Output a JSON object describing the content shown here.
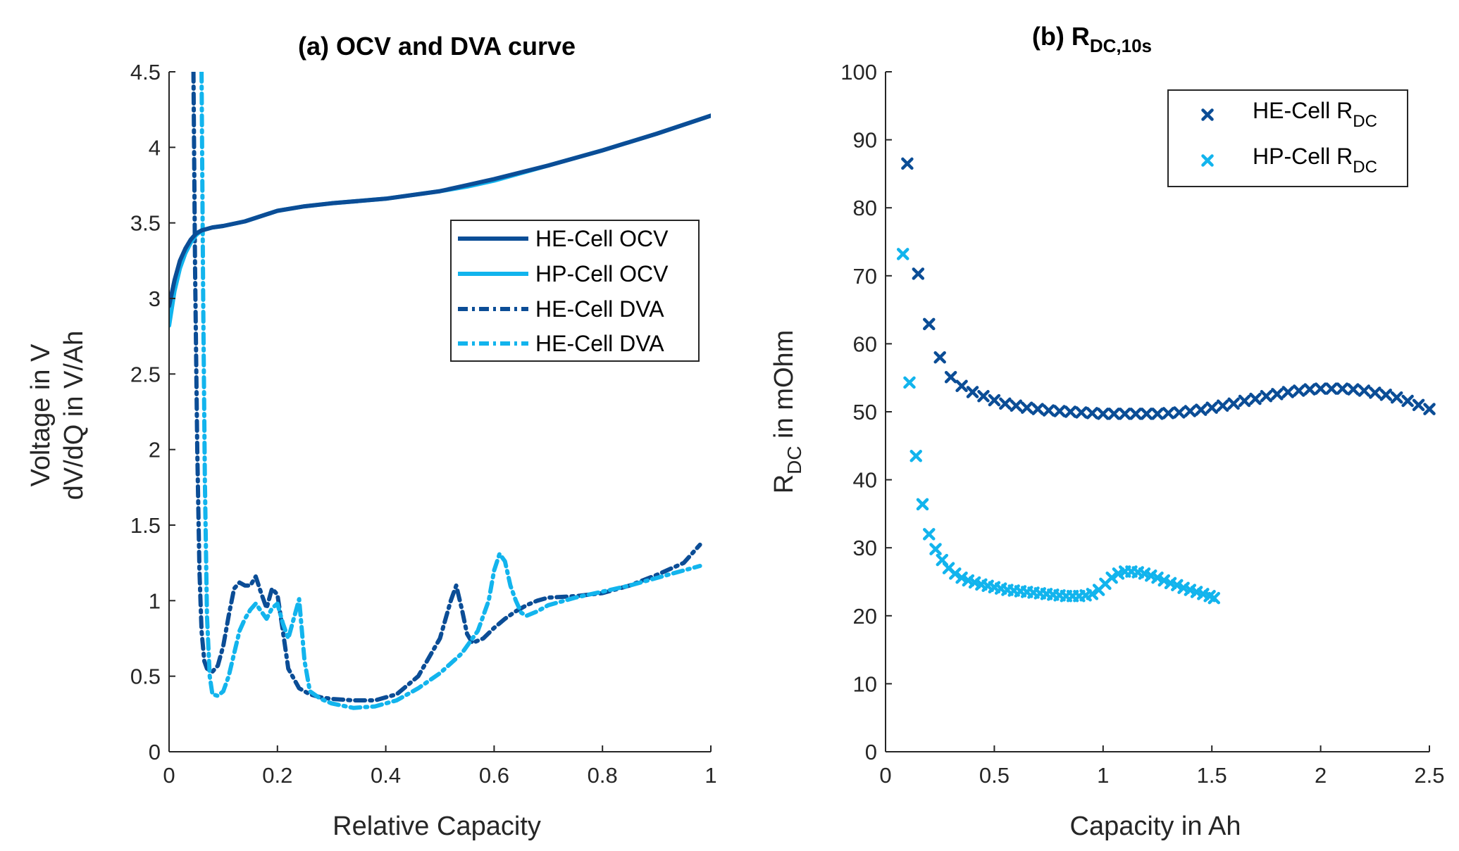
{
  "chart_data": [
    {
      "type": "line",
      "title": "(a) OCV and DVA curve",
      "xlabel": "Relative Capacity",
      "ylabel_lines": [
        "Voltage in V",
        "dV/dQ in V/Ah"
      ],
      "xlim": [
        0,
        1
      ],
      "ylim": [
        0,
        4.5
      ],
      "xticks": [
        0,
        0.2,
        0.4,
        0.6,
        0.8,
        1
      ],
      "xtick_labels": [
        "0",
        "0.2",
        "0.4",
        "0.6",
        "0.8",
        "1"
      ],
      "yticks": [
        0,
        0.5,
        1,
        1.5,
        2,
        2.5,
        3,
        3.5,
        4,
        4.5
      ],
      "ytick_labels": [
        "0",
        "0.5",
        "1",
        "1.5",
        "2",
        "2.5",
        "3",
        "3.5",
        "4",
        "4.5"
      ],
      "grid": false,
      "legend_position": "center-right",
      "series": [
        {
          "name": "HE-Cell OCV",
          "color": "#0b4d96",
          "style": "solid",
          "x": [
            0,
            0.01,
            0.02,
            0.03,
            0.04,
            0.05,
            0.06,
            0.08,
            0.1,
            0.14,
            0.2,
            0.25,
            0.3,
            0.4,
            0.5,
            0.55,
            0.6,
            0.7,
            0.8,
            0.9,
            1.0
          ],
          "y": [
            2.95,
            3.12,
            3.25,
            3.33,
            3.39,
            3.43,
            3.45,
            3.47,
            3.48,
            3.51,
            3.58,
            3.61,
            3.63,
            3.66,
            3.71,
            3.75,
            3.79,
            3.88,
            3.98,
            4.09,
            4.21
          ]
        },
        {
          "name": "HP-Cell OCV",
          "color": "#12b4ed",
          "style": "solid",
          "x": [
            0,
            0.01,
            0.02,
            0.03,
            0.04,
            0.05,
            0.06,
            0.08,
            0.1,
            0.14,
            0.2,
            0.25,
            0.3,
            0.4,
            0.5,
            0.55,
            0.6,
            0.7,
            0.8,
            0.9,
            1.0
          ],
          "y": [
            2.82,
            3.05,
            3.2,
            3.3,
            3.37,
            3.42,
            3.45,
            3.47,
            3.48,
            3.51,
            3.58,
            3.61,
            3.63,
            3.66,
            3.71,
            3.74,
            3.78,
            3.88,
            3.98,
            4.09,
            4.21
          ]
        },
        {
          "name": "HE-Cell DVA",
          "color": "#0b4d96",
          "style": "dashdot",
          "x": [
            0.045,
            0.048,
            0.052,
            0.056,
            0.06,
            0.065,
            0.07,
            0.08,
            0.09,
            0.1,
            0.11,
            0.12,
            0.13,
            0.14,
            0.15,
            0.16,
            0.17,
            0.18,
            0.19,
            0.2,
            0.21,
            0.22,
            0.24,
            0.26,
            0.28,
            0.3,
            0.34,
            0.38,
            0.42,
            0.46,
            0.5,
            0.52,
            0.53,
            0.54,
            0.55,
            0.56,
            0.58,
            0.6,
            0.62,
            0.64,
            0.66,
            0.68,
            0.7,
            0.75,
            0.8,
            0.85,
            0.9,
            0.95,
            0.98
          ],
          "y": [
            4.5,
            3.2,
            2.0,
            1.2,
            0.8,
            0.6,
            0.55,
            0.53,
            0.57,
            0.7,
            0.9,
            1.08,
            1.12,
            1.1,
            1.1,
            1.16,
            1.05,
            0.95,
            1.08,
            1.04,
            0.8,
            0.55,
            0.42,
            0.38,
            0.36,
            0.35,
            0.34,
            0.34,
            0.38,
            0.5,
            0.75,
            1.0,
            1.1,
            0.95,
            0.78,
            0.72,
            0.75,
            0.82,
            0.88,
            0.93,
            0.97,
            1.0,
            1.02,
            1.03,
            1.05,
            1.1,
            1.17,
            1.25,
            1.37
          ]
        },
        {
          "name": "HE-Cell DVA",
          "color": "#12b4ed",
          "style": "dashdot",
          "x": [
            0.06,
            0.063,
            0.066,
            0.07,
            0.075,
            0.08,
            0.09,
            0.1,
            0.11,
            0.12,
            0.13,
            0.14,
            0.15,
            0.16,
            0.17,
            0.18,
            0.19,
            0.2,
            0.21,
            0.22,
            0.23,
            0.24,
            0.25,
            0.26,
            0.28,
            0.3,
            0.34,
            0.38,
            0.42,
            0.46,
            0.5,
            0.54,
            0.57,
            0.59,
            0.6,
            0.61,
            0.62,
            0.63,
            0.64,
            0.65,
            0.66,
            0.68,
            0.7,
            0.75,
            0.8,
            0.85,
            0.9,
            0.95,
            0.98
          ],
          "y": [
            4.5,
            3.0,
            1.8,
            0.9,
            0.5,
            0.38,
            0.37,
            0.4,
            0.5,
            0.65,
            0.8,
            0.88,
            0.94,
            0.98,
            0.93,
            0.88,
            0.95,
            0.98,
            0.85,
            0.75,
            0.88,
            1.01,
            0.6,
            0.4,
            0.35,
            0.32,
            0.29,
            0.3,
            0.34,
            0.42,
            0.52,
            0.65,
            0.8,
            1.0,
            1.2,
            1.31,
            1.26,
            1.1,
            1.0,
            0.92,
            0.9,
            0.93,
            0.97,
            1.02,
            1.06,
            1.1,
            1.15,
            1.2,
            1.23
          ]
        }
      ]
    },
    {
      "type": "scatter",
      "title_main": "(b) R",
      "title_sub": "DC,10s",
      "xlabel": "Capacity in Ah",
      "ylabel_main": "R",
      "ylabel_sub": "DC",
      "ylabel_rest": " in mOhm",
      "xlim": [
        0,
        2.5
      ],
      "ylim": [
        0,
        100
      ],
      "xticks": [
        0,
        0.5,
        1,
        1.5,
        2,
        2.5
      ],
      "xtick_labels": [
        "0",
        "0.5",
        "1",
        "1.5",
        "2",
        "2.5"
      ],
      "yticks": [
        0,
        10,
        20,
        30,
        40,
        50,
        60,
        70,
        80,
        90,
        100
      ],
      "ytick_labels": [
        "0",
        "10",
        "20",
        "30",
        "40",
        "50",
        "60",
        "70",
        "80",
        "90",
        "100"
      ],
      "grid": false,
      "legend_position": "top-right",
      "marker": "x",
      "series": [
        {
          "name_main": "HE-Cell R",
          "name_sub": "DC",
          "color": "#0b4d96",
          "x": [
            0.1,
            0.15,
            0.2,
            0.25,
            0.3,
            0.35,
            0.4,
            0.45,
            0.5,
            0.55,
            0.6,
            0.65,
            0.7,
            0.75,
            0.8,
            0.85,
            0.9,
            0.95,
            1.0,
            1.05,
            1.1,
            1.15,
            1.2,
            1.25,
            1.3,
            1.35,
            1.4,
            1.45,
            1.5,
            1.55,
            1.6,
            1.65,
            1.7,
            1.75,
            1.8,
            1.85,
            1.9,
            1.95,
            2.0,
            2.05,
            2.1,
            2.15,
            2.2,
            2.25,
            2.3,
            2.35,
            2.4,
            2.45,
            2.5
          ],
          "y": [
            86.5,
            70.3,
            62.9,
            58.0,
            55.1,
            53.8,
            52.9,
            52.3,
            51.7,
            51.2,
            50.9,
            50.6,
            50.4,
            50.2,
            50.1,
            50.0,
            49.9,
            49.8,
            49.7,
            49.7,
            49.7,
            49.7,
            49.7,
            49.7,
            49.8,
            49.9,
            50.1,
            50.3,
            50.6,
            50.9,
            51.2,
            51.6,
            51.9,
            52.3,
            52.6,
            52.9,
            53.1,
            53.3,
            53.4,
            53.4,
            53.4,
            53.3,
            53.1,
            52.8,
            52.5,
            52.1,
            51.6,
            51.0,
            50.4
          ]
        },
        {
          "name_main": "HP-Cell R",
          "name_sub": "DC",
          "color": "#12b4ed",
          "x": [
            0.08,
            0.11,
            0.14,
            0.17,
            0.2,
            0.23,
            0.26,
            0.29,
            0.32,
            0.35,
            0.38,
            0.41,
            0.44,
            0.47,
            0.5,
            0.53,
            0.56,
            0.59,
            0.62,
            0.65,
            0.68,
            0.71,
            0.74,
            0.77,
            0.8,
            0.83,
            0.86,
            0.89,
            0.92,
            0.95,
            0.98,
            1.01,
            1.04,
            1.07,
            1.1,
            1.13,
            1.16,
            1.19,
            1.22,
            1.25,
            1.28,
            1.31,
            1.34,
            1.37,
            1.4,
            1.43,
            1.46,
            1.49,
            1.51
          ],
          "y": [
            73.2,
            54.3,
            43.5,
            36.4,
            32.0,
            29.8,
            28.2,
            27.0,
            26.2,
            25.6,
            25.2,
            24.9,
            24.6,
            24.4,
            24.2,
            24.0,
            23.8,
            23.7,
            23.6,
            23.5,
            23.4,
            23.3,
            23.2,
            23.1,
            23.0,
            22.9,
            22.9,
            22.9,
            23.0,
            23.2,
            23.8,
            24.7,
            25.6,
            26.2,
            26.5,
            26.5,
            26.4,
            26.2,
            25.9,
            25.6,
            25.2,
            24.8,
            24.5,
            24.1,
            23.8,
            23.5,
            23.2,
            22.9,
            22.6
          ]
        }
      ]
    }
  ]
}
